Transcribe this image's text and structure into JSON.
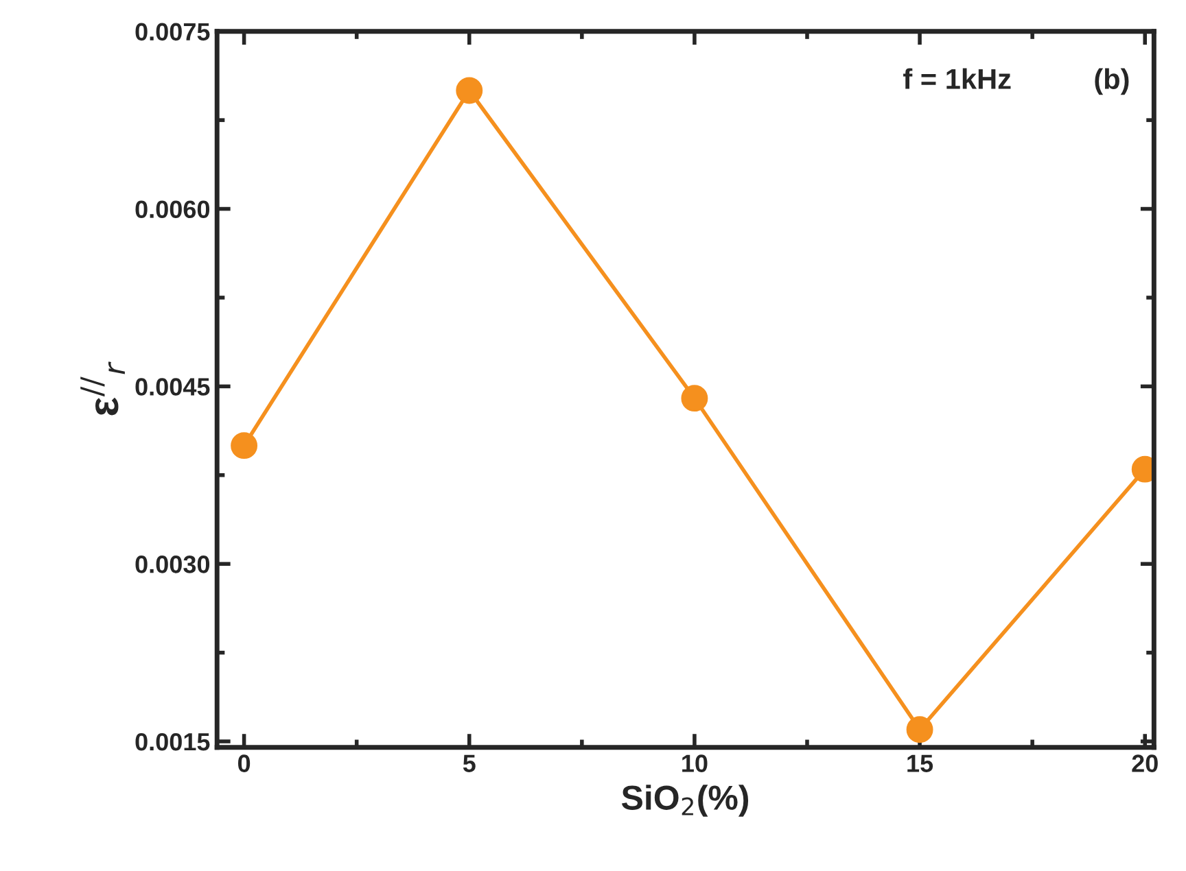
{
  "chart_data": {
    "type": "line",
    "xlabel": "SiO$_{2}$(%)",
    "ylabel": "ε$^{//}$$_{r}$",
    "x": [
      0,
      5,
      10,
      15,
      20
    ],
    "series": [
      {
        "color": "#f5901e",
        "values": [
          0.004,
          0.007,
          0.0044,
          0.0016,
          0.0038
        ]
      }
    ],
    "xlim": [
      -0.6,
      20.2
    ],
    "xticks": [
      0,
      5,
      10,
      15,
      20
    ],
    "ylim": [
      0.00145,
      0.0075
    ],
    "yticks": [
      {
        "value": 0.0015,
        "label": "0.0015"
      },
      {
        "value": 0.003,
        "label": "0.0030"
      },
      {
        "value": 0.0045,
        "label": "0.0045"
      },
      {
        "value": 0.006,
        "label": "0.0060"
      },
      {
        "value": 0.0075,
        "label": "0.0075"
      }
    ],
    "marker": "circle",
    "line_style": "solid",
    "grid": false,
    "legend": false,
    "annotations": [
      "f = 1kHz",
      "(b)"
    ]
  }
}
